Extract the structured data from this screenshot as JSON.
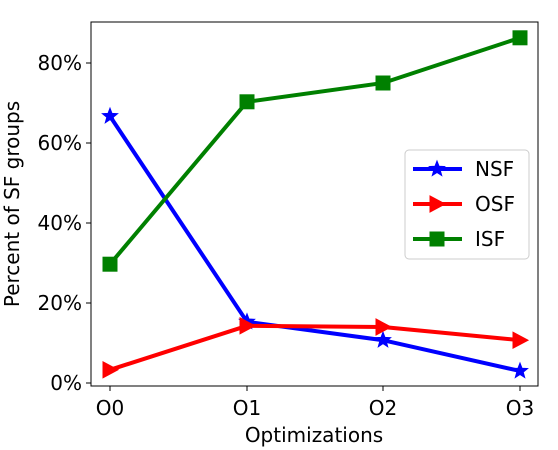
{
  "chart_data": {
    "type": "line",
    "title": "",
    "xlabel": "Optimizations",
    "ylabel": "Percent of SF groups",
    "categories": [
      "O0",
      "O1",
      "O2",
      "O3"
    ],
    "ylim": [
      0,
      90
    ],
    "yticks": [
      0,
      20,
      40,
      60,
      80
    ],
    "ytick_labels": [
      "0%",
      "20%",
      "40%",
      "60%",
      "80%"
    ],
    "grid": false,
    "legend_position": "right",
    "series": [
      {
        "name": "NSF",
        "color": "#0000ff",
        "marker": "star",
        "values": [
          66.7,
          15.3,
          10.7,
          3.0
        ]
      },
      {
        "name": "OSF",
        "color": "#ff0000",
        "marker": "triangle-right",
        "values": [
          3.3,
          14.3,
          14.0,
          10.7
        ]
      },
      {
        "name": "ISF",
        "color": "#008000",
        "marker": "square",
        "values": [
          29.7,
          70.3,
          75.0,
          86.3
        ]
      }
    ]
  }
}
